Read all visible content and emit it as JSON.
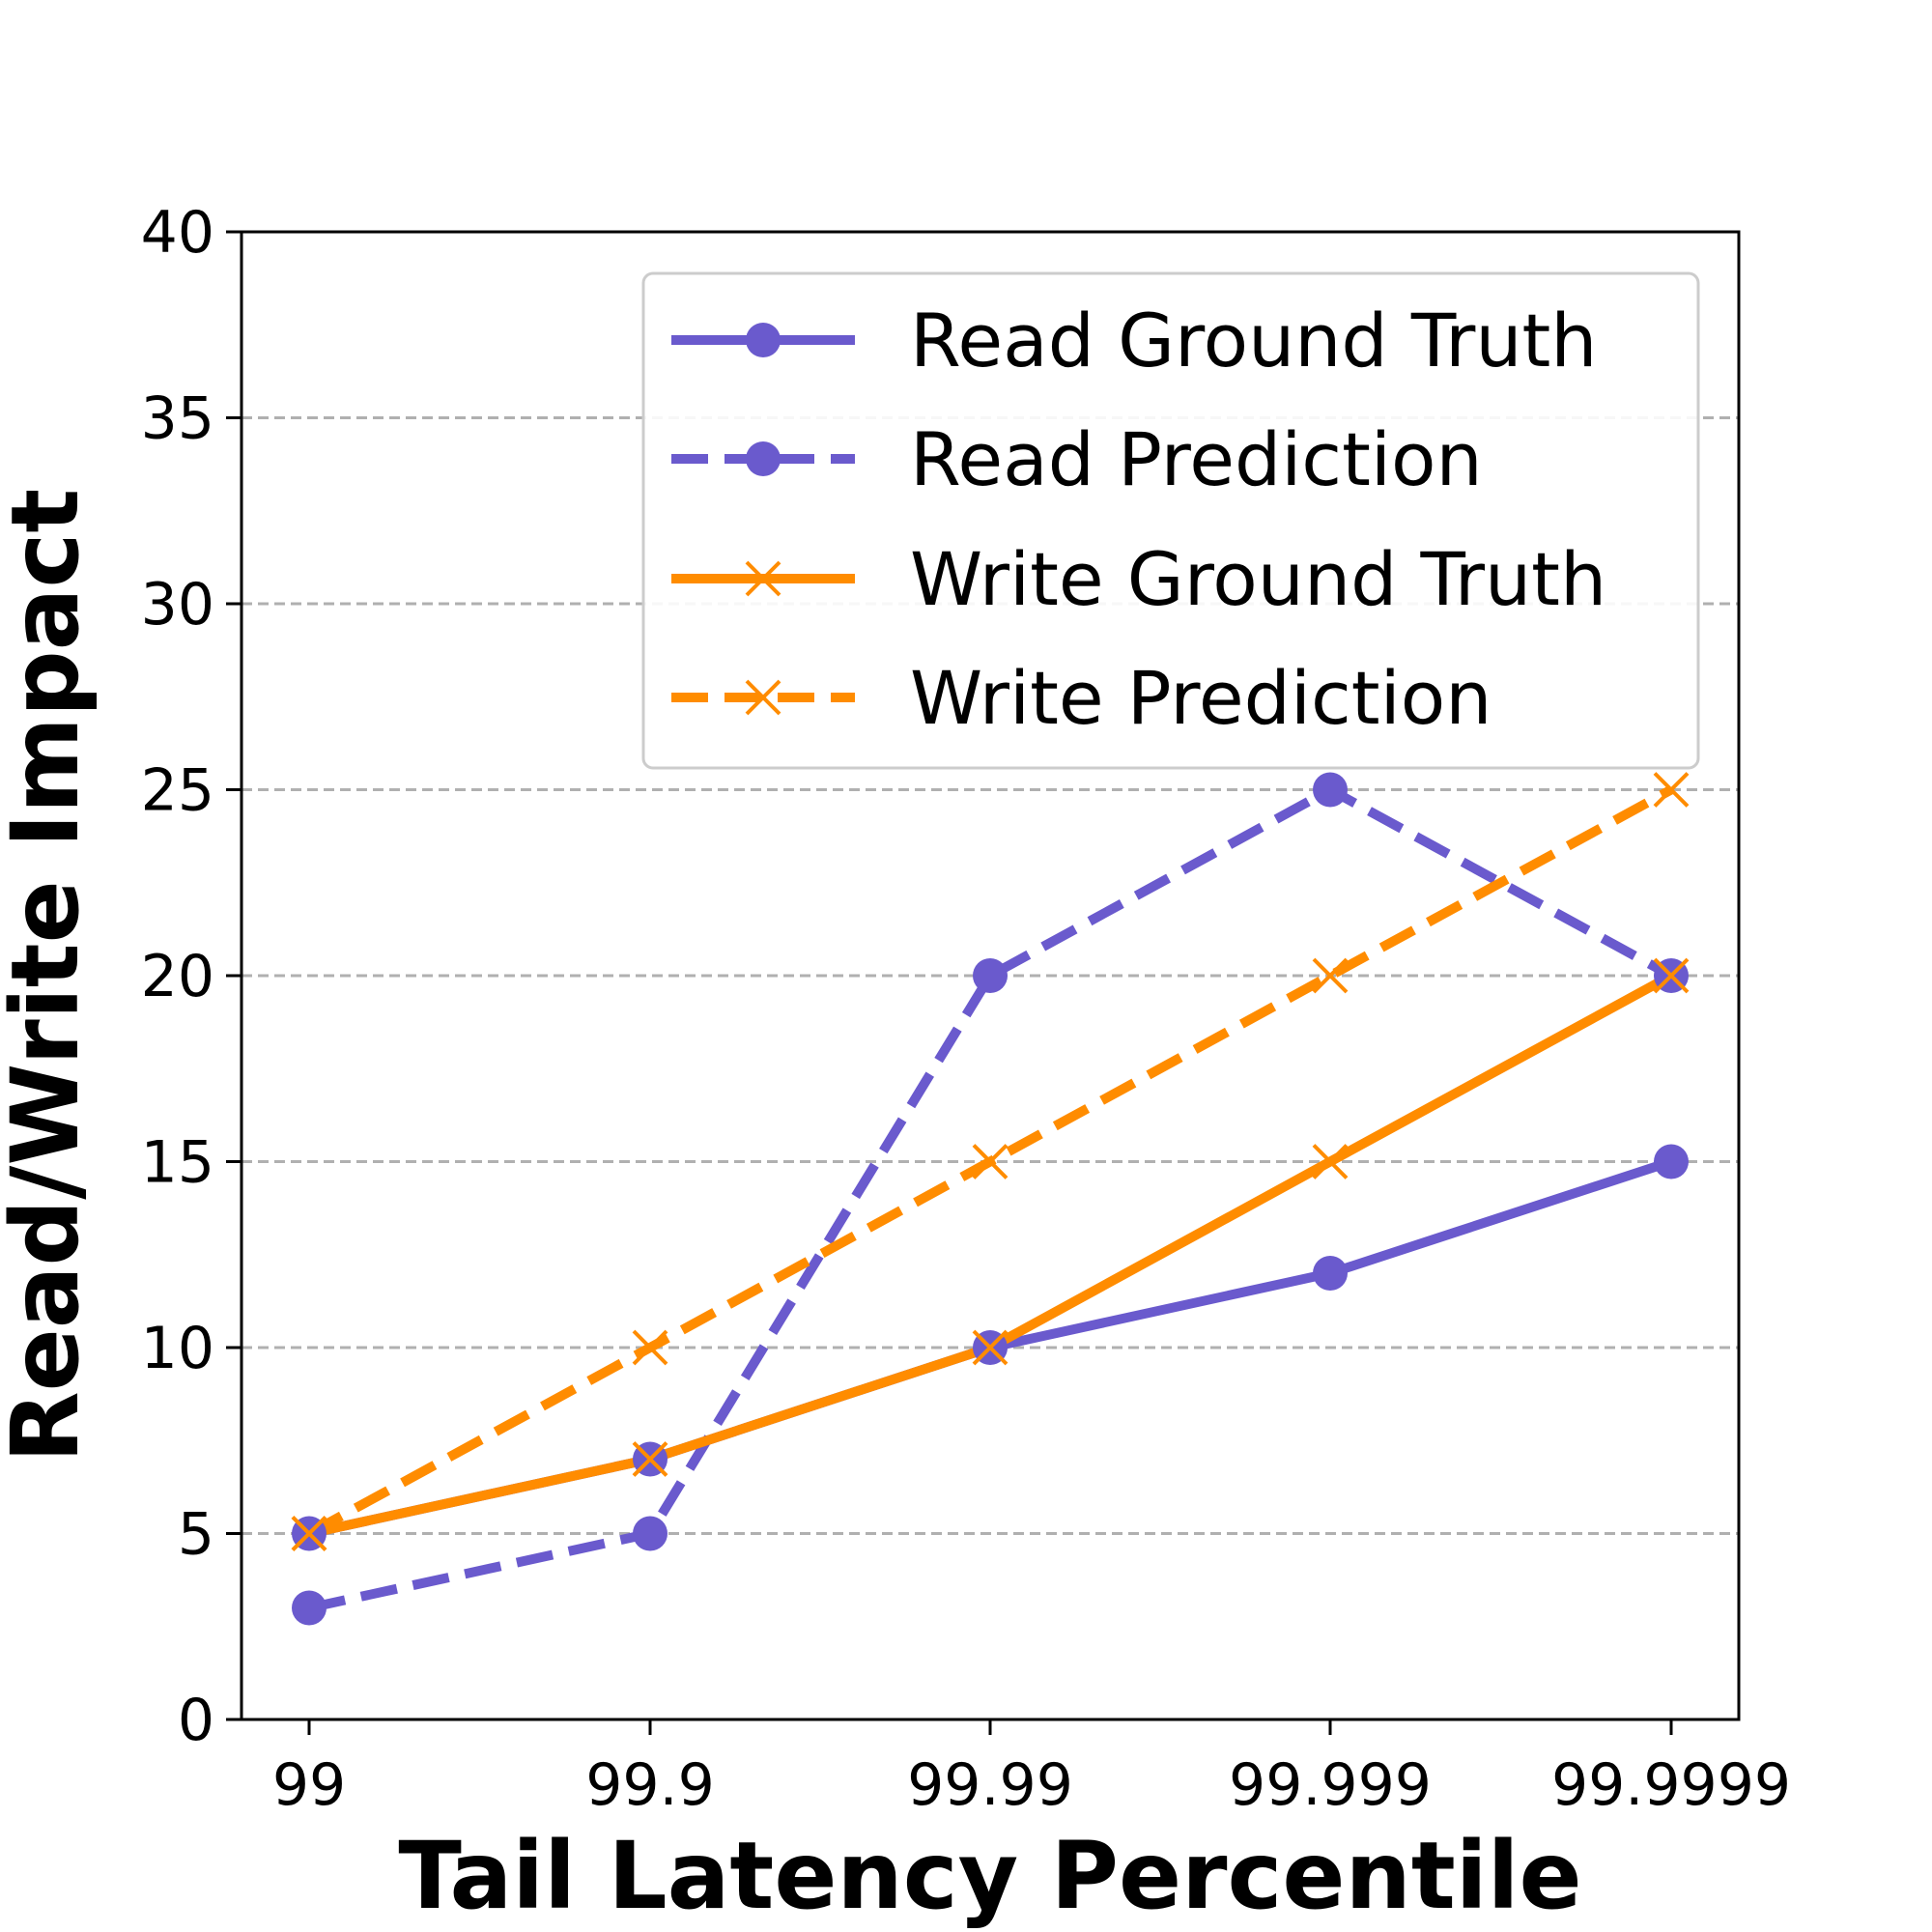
{
  "chart_data": {
    "type": "line",
    "title": "",
    "xlabel": "Tail Latency Percentile",
    "ylabel": "Read/Write Impact",
    "categories": [
      "99",
      "99.9",
      "99.99",
      "99.999",
      "99.9999"
    ],
    "ylim": [
      0,
      40
    ],
    "yticks": [
      "0",
      "5",
      "10",
      "15",
      "20",
      "25",
      "30",
      "35",
      "40"
    ],
    "grid": "horizontal-dashed",
    "legend_position": "top-right",
    "series": [
      {
        "name": "Read Ground Truth",
        "values": [
          5,
          7,
          10,
          12,
          15
        ],
        "color": "#6a5acd",
        "style": "solid",
        "marker": "circle"
      },
      {
        "name": "Read Prediction",
        "values": [
          3,
          5,
          20,
          25,
          20
        ],
        "color": "#6a5acd",
        "style": "dashed",
        "marker": "circle"
      },
      {
        "name": "Write Ground Truth",
        "values": [
          5,
          7,
          10,
          15,
          20
        ],
        "color": "#ff8c00",
        "style": "solid",
        "marker": "x"
      },
      {
        "name": "Write Prediction",
        "values": [
          5,
          10,
          15,
          20,
          25
        ],
        "color": "#ff8c00",
        "style": "dashed",
        "marker": "x"
      }
    ]
  }
}
